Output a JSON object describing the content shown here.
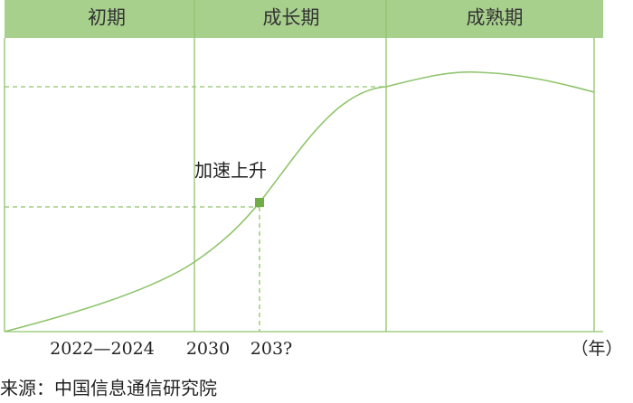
{
  "header": {
    "stages": [
      "初期",
      "成长期",
      "成熟期"
    ]
  },
  "diagram": {
    "annotation": "加速上升",
    "x_labels": [
      "2022—2024",
      "2030",
      "203?"
    ],
    "unit": "（年）"
  },
  "footer": {
    "source": "来源：中国信息通信研究院"
  }
}
